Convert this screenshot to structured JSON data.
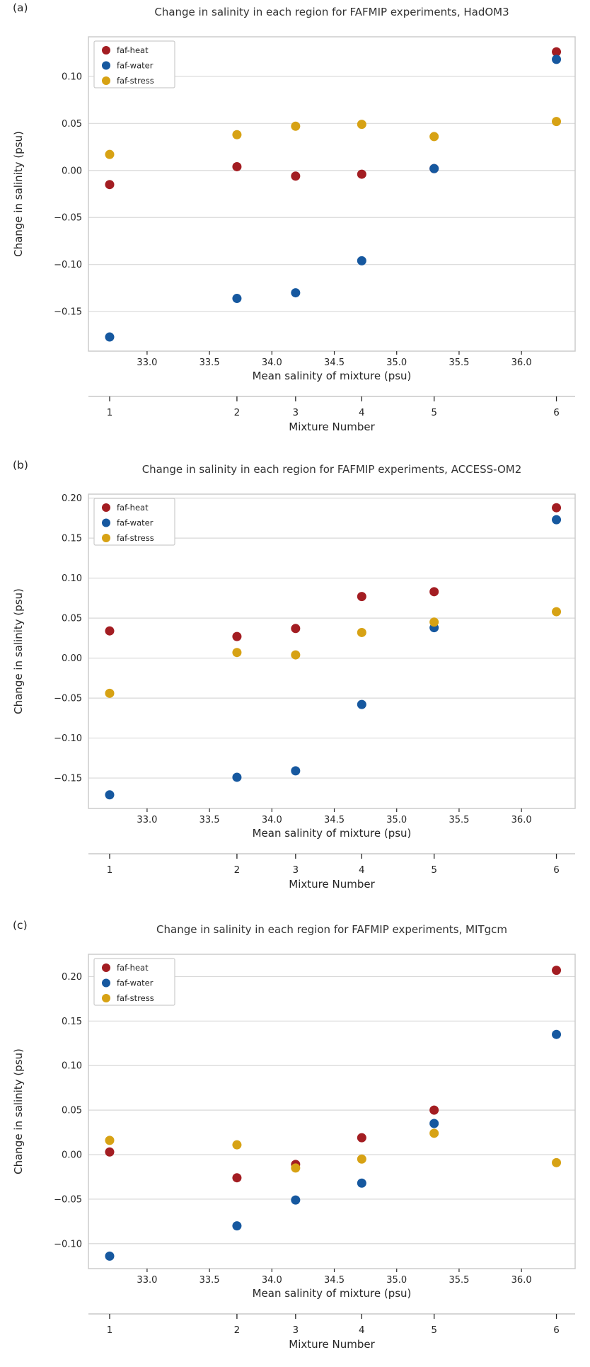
{
  "style": {
    "grid_color": "#d9d9d9",
    "spine_color": "#c9c9c9",
    "tick_color": "#262626",
    "text_color": "#262626",
    "legend_border_color": "#cccccc",
    "background": "#ffffff"
  },
  "chart_data": [
    {
      "type": "scatter",
      "panel_label": "(a)",
      "title": "Change in salinity in each region for FAFMIP experiments, HadOM3",
      "xlabel": "Mean salinity of mixture (psu)",
      "ylabel": "Change in salinity (psu)",
      "secondary_axis_label": "Mixture Number",
      "x_mixture_number": [
        1,
        2,
        3,
        4,
        5,
        6
      ],
      "x_mean_salinity": [
        32.7,
        33.72,
        34.19,
        34.72,
        35.3,
        36.28
      ],
      "xlim": [
        32.53,
        36.43
      ],
      "ylim": [
        -0.192,
        0.142
      ],
      "xticks": [
        33.0,
        33.5,
        34.0,
        34.5,
        35.0,
        35.5,
        36.0
      ],
      "yticks": [
        0.1,
        0.05,
        0.0,
        -0.05,
        -0.1,
        -0.15
      ],
      "grid": "horizontal",
      "legend_position": "upper-left",
      "series": [
        {
          "name": "faf-heat",
          "color": "#a31d22",
          "values": [
            -0.015,
            0.004,
            -0.006,
            -0.004,
            0.002,
            0.126
          ]
        },
        {
          "name": "faf-water",
          "color": "#16589f",
          "values": [
            -0.177,
            -0.136,
            -0.13,
            -0.096,
            0.002,
            0.118
          ]
        },
        {
          "name": "faf-stress",
          "color": "#d7a214",
          "values": [
            0.017,
            0.038,
            0.047,
            0.049,
            0.036,
            0.052
          ]
        }
      ]
    },
    {
      "type": "scatter",
      "panel_label": "(b)",
      "title": "Change in salinity in each region for FAFMIP experiments, ACCESS-OM2",
      "xlabel": "Mean salinity of mixture (psu)",
      "ylabel": "Change in salinity (psu)",
      "secondary_axis_label": "Mixture Number",
      "x_mixture_number": [
        1,
        2,
        3,
        4,
        5,
        6
      ],
      "x_mean_salinity": [
        32.7,
        33.72,
        34.19,
        34.72,
        35.3,
        36.28
      ],
      "xlim": [
        32.53,
        36.43
      ],
      "ylim": [
        -0.188,
        0.205
      ],
      "xticks": [
        33.0,
        33.5,
        34.0,
        34.5,
        35.0,
        35.5,
        36.0
      ],
      "yticks": [
        0.2,
        0.15,
        0.1,
        0.05,
        0.0,
        -0.05,
        -0.1,
        -0.15
      ],
      "grid": "horizontal",
      "legend_position": "upper-left",
      "series": [
        {
          "name": "faf-heat",
          "color": "#a31d22",
          "values": [
            0.034,
            0.027,
            0.037,
            0.077,
            0.083,
            0.188
          ]
        },
        {
          "name": "faf-water",
          "color": "#16589f",
          "values": [
            -0.171,
            -0.149,
            -0.141,
            -0.058,
            0.038,
            0.173
          ]
        },
        {
          "name": "faf-stress",
          "color": "#d7a214",
          "values": [
            -0.044,
            0.007,
            0.004,
            0.032,
            0.045,
            0.058
          ]
        }
      ]
    },
    {
      "type": "scatter",
      "panel_label": "(c)",
      "title": "Change in salinity in each region for FAFMIP experiments, MITgcm",
      "xlabel": "Mean salinity of mixture (psu)",
      "ylabel": "Change in salinity (psu)",
      "secondary_axis_label": "Mixture Number",
      "x_mixture_number": [
        1,
        2,
        3,
        4,
        5,
        6
      ],
      "x_mean_salinity": [
        32.7,
        33.72,
        34.19,
        34.72,
        35.3,
        36.28
      ],
      "xlim": [
        32.53,
        36.43
      ],
      "ylim": [
        -0.128,
        0.225
      ],
      "xticks": [
        33.0,
        33.5,
        34.0,
        34.5,
        35.0,
        35.5,
        36.0
      ],
      "yticks": [
        0.2,
        0.15,
        0.1,
        0.05,
        0.0,
        -0.05,
        -0.1
      ],
      "grid": "horizontal",
      "legend_position": "upper-left",
      "series": [
        {
          "name": "faf-heat",
          "color": "#a31d22",
          "values": [
            0.003,
            -0.026,
            -0.011,
            0.019,
            0.05,
            0.207
          ]
        },
        {
          "name": "faf-water",
          "color": "#16589f",
          "values": [
            -0.114,
            -0.08,
            -0.051,
            -0.032,
            0.035,
            0.135
          ]
        },
        {
          "name": "faf-stress",
          "color": "#d7a214",
          "values": [
            0.016,
            0.011,
            -0.015,
            -0.005,
            0.024,
            -0.009
          ]
        }
      ]
    }
  ]
}
